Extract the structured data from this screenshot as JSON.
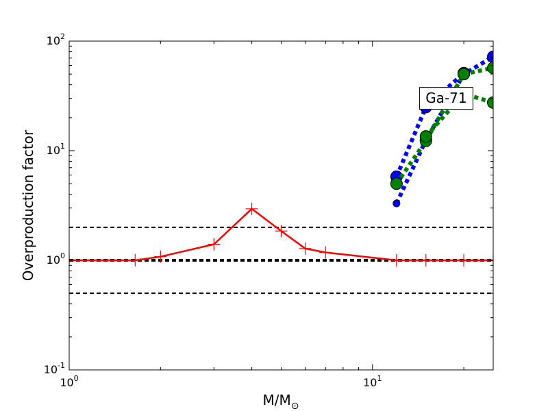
{
  "chart_data": {
    "type": "line",
    "xscale": "log",
    "yscale": "log",
    "xlim": [
      1,
      25
    ],
    "ylim": [
      0.1,
      100
    ],
    "xlabel": "M/M",
    "xlabel_sub": "⊙",
    "ylabel": "Overproduction factor",
    "x_ticks": [
      {
        "value": 1,
        "base": "10",
        "exp": "0"
      },
      {
        "value": 10,
        "base": "10",
        "exp": "1"
      }
    ],
    "y_ticks": [
      {
        "value": 0.1,
        "base": "10",
        "exp": "-1"
      },
      {
        "value": 1,
        "base": "10",
        "exp": "0"
      },
      {
        "value": 10,
        "base": "10",
        "exp": "1"
      },
      {
        "value": 100,
        "base": "10",
        "exp": "2"
      }
    ],
    "reference_lines": [
      {
        "y": 2.0,
        "width": 2
      },
      {
        "y": 1.0,
        "width": 4
      },
      {
        "y": 0.5,
        "width": 2
      }
    ],
    "series": [
      {
        "color": "#ff0000",
        "marker": "plus",
        "line": "solid",
        "x": [
          1,
          1.65,
          2,
          3,
          4,
          5,
          6,
          7,
          12,
          15,
          20,
          25
        ],
        "y": [
          1.0,
          1.0,
          1.08,
          1.4,
          2.95,
          1.85,
          1.28,
          1.18,
          1.0,
          1.0,
          1.0,
          1.0
        ]
      },
      {
        "color": "#0000ff",
        "marker": "circle",
        "line": "dotted",
        "x": [
          12,
          15,
          20,
          25
        ],
        "y": [
          3.3,
          12.5,
          50,
          72
        ]
      },
      {
        "color": "#0000ff",
        "marker": "circle",
        "line": "dotted",
        "x": [
          12,
          15,
          20
        ],
        "y": [
          5.8,
          25,
          51
        ]
      },
      {
        "color": "#008000",
        "marker": "circle",
        "line": "dotted",
        "x": [
          12,
          15,
          20,
          25
        ],
        "y": [
          5.0,
          12.3,
          50,
          57
        ]
      },
      {
        "color": "#008000",
        "marker": "circle",
        "line": "dotted",
        "x": [
          15,
          20,
          25
        ],
        "y": [
          13.5,
          33,
          27.5
        ]
      }
    ],
    "annotation": {
      "text": "Ga-71",
      "x": 17.5,
      "y": 30
    }
  }
}
